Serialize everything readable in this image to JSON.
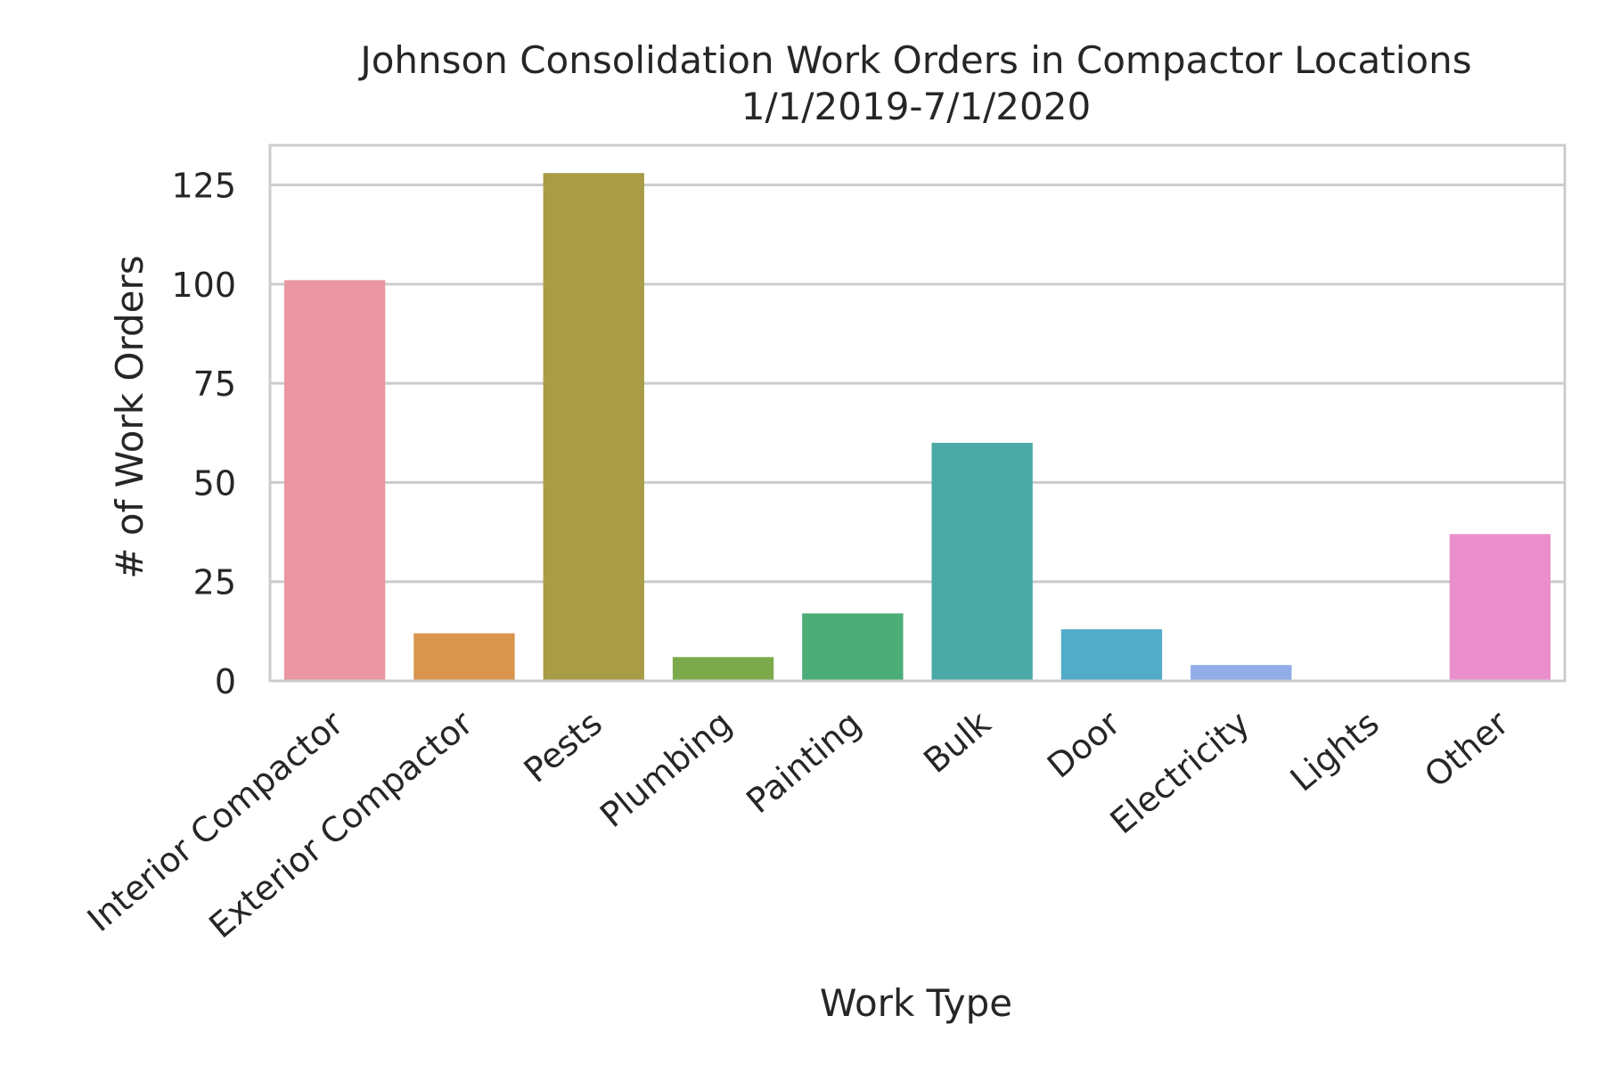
{
  "chart_data": {
    "type": "bar",
    "title": "Johnson Consolidation Work Orders in Compactor Locations",
    "subtitle": "1/1/2019-7/1/2020",
    "xlabel": "Work Type",
    "ylabel": "# of Work Orders",
    "categories": [
      "Interior Compactor",
      "Exterior Compactor",
      "Pests",
      "Plumbing",
      "Painting",
      "Bulk",
      "Door",
      "Electricity",
      "Lights",
      "Other"
    ],
    "values": [
      101,
      12,
      128,
      6,
      17,
      60,
      13,
      4,
      0,
      37
    ],
    "colors": [
      "#ea96a3",
      "#d9954e",
      "#a99c47",
      "#7caa4b",
      "#4cad78",
      "#4caaa6",
      "#52abc8",
      "#92ade8",
      "#d3a0ea",
      "#ea8fcc"
    ],
    "ylim": [
      0,
      135
    ],
    "yticks": [
      0,
      25,
      50,
      75,
      100,
      125
    ],
    "grid": true,
    "legend": "none"
  }
}
